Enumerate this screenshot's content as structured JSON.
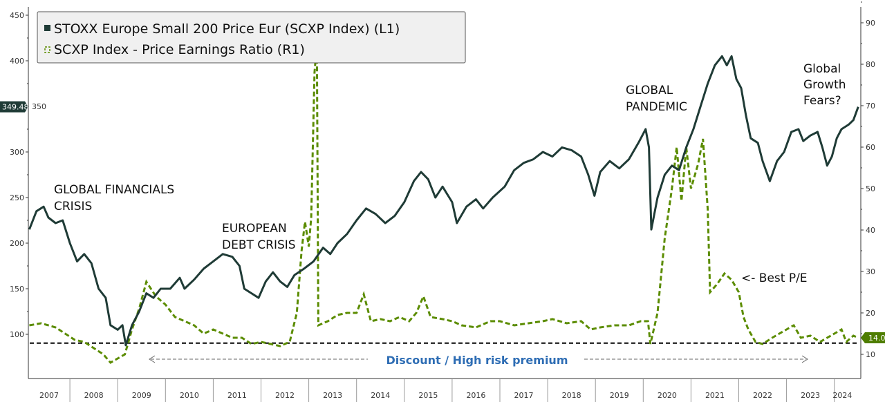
{
  "chart_data": {
    "type": "line",
    "title": "",
    "legend": {
      "placement": "top-left",
      "entries": [
        "STOXX Europe Small 200 Price Eur (SCXP Index) (L1)",
        "SCXP Index - Price Earnings Ratio (R1)"
      ]
    },
    "x_axis": {
      "type": "date",
      "tick_labels": [
        "2007",
        "2008",
        "2009",
        "2010",
        "2011",
        "2012",
        "2013",
        "2014",
        "2015",
        "2016",
        "2017",
        "2018",
        "2019",
        "2020",
        "2021",
        "2022",
        "2023",
        "2024"
      ]
    },
    "y_left": {
      "ylim": [
        50,
        455
      ],
      "ticks": [
        100,
        150,
        200,
        250,
        300,
        350,
        400,
        450
      ]
    },
    "y_right": {
      "ylim": [
        4,
        94
      ],
      "ticks": [
        10,
        20,
        30,
        40,
        50,
        60,
        70,
        80,
        90
      ]
    },
    "grid": false,
    "colors": {
      "price": "#1f3b36",
      "pe": "#5b8c00",
      "discount_text": "#2e6db4",
      "last_price_badge": "#1f3b36",
      "last_pe_badge": "#4e7d00"
    },
    "series": [
      {
        "name": "STOXX Europe Small 200 Price Eur (SCXP Index) (L1)",
        "axis": "left",
        "style": "solid",
        "points": [
          [
            2007.15,
            215
          ],
          [
            2007.3,
            235
          ],
          [
            2007.45,
            240
          ],
          [
            2007.55,
            228
          ],
          [
            2007.7,
            222
          ],
          [
            2007.85,
            225
          ],
          [
            2008.0,
            200
          ],
          [
            2008.15,
            180
          ],
          [
            2008.3,
            188
          ],
          [
            2008.45,
            178
          ],
          [
            2008.6,
            150
          ],
          [
            2008.75,
            140
          ],
          [
            2008.85,
            110
          ],
          [
            2009.0,
            105
          ],
          [
            2009.1,
            110
          ],
          [
            2009.17,
            88
          ],
          [
            2009.3,
            110
          ],
          [
            2009.45,
            125
          ],
          [
            2009.6,
            145
          ],
          [
            2009.75,
            140
          ],
          [
            2009.9,
            150
          ],
          [
            2010.1,
            150
          ],
          [
            2010.3,
            162
          ],
          [
            2010.4,
            150
          ],
          [
            2010.6,
            160
          ],
          [
            2010.8,
            172
          ],
          [
            2011.0,
            180
          ],
          [
            2011.2,
            188
          ],
          [
            2011.4,
            185
          ],
          [
            2011.55,
            175
          ],
          [
            2011.65,
            150
          ],
          [
            2011.8,
            145
          ],
          [
            2011.95,
            140
          ],
          [
            2012.1,
            158
          ],
          [
            2012.25,
            168
          ],
          [
            2012.4,
            158
          ],
          [
            2012.55,
            152
          ],
          [
            2012.7,
            165
          ],
          [
            2012.9,
            172
          ],
          [
            2013.1,
            180
          ],
          [
            2013.3,
            195
          ],
          [
            2013.45,
            188
          ],
          [
            2013.6,
            200
          ],
          [
            2013.8,
            210
          ],
          [
            2014.0,
            225
          ],
          [
            2014.2,
            238
          ],
          [
            2014.4,
            232
          ],
          [
            2014.6,
            222
          ],
          [
            2014.8,
            230
          ],
          [
            2015.0,
            245
          ],
          [
            2015.2,
            268
          ],
          [
            2015.35,
            278
          ],
          [
            2015.5,
            270
          ],
          [
            2015.65,
            250
          ],
          [
            2015.8,
            262
          ],
          [
            2016.0,
            245
          ],
          [
            2016.1,
            222
          ],
          [
            2016.3,
            240
          ],
          [
            2016.5,
            248
          ],
          [
            2016.65,
            238
          ],
          [
            2016.85,
            250
          ],
          [
            2017.1,
            262
          ],
          [
            2017.3,
            280
          ],
          [
            2017.5,
            288
          ],
          [
            2017.7,
            292
          ],
          [
            2017.9,
            300
          ],
          [
            2018.1,
            295
          ],
          [
            2018.3,
            305
          ],
          [
            2018.5,
            302
          ],
          [
            2018.7,
            295
          ],
          [
            2018.85,
            275
          ],
          [
            2018.98,
            252
          ],
          [
            2019.1,
            278
          ],
          [
            2019.3,
            290
          ],
          [
            2019.5,
            282
          ],
          [
            2019.7,
            292
          ],
          [
            2019.9,
            310
          ],
          [
            2020.05,
            325
          ],
          [
            2020.12,
            305
          ],
          [
            2020.17,
            215
          ],
          [
            2020.3,
            250
          ],
          [
            2020.45,
            275
          ],
          [
            2020.6,
            285
          ],
          [
            2020.75,
            280
          ],
          [
            2020.9,
            305
          ],
          [
            2021.05,
            325
          ],
          [
            2021.2,
            350
          ],
          [
            2021.35,
            375
          ],
          [
            2021.5,
            395
          ],
          [
            2021.65,
            405
          ],
          [
            2021.75,
            395
          ],
          [
            2021.85,
            405
          ],
          [
            2021.95,
            380
          ],
          [
            2022.05,
            370
          ],
          [
            2022.15,
            340
          ],
          [
            2022.25,
            315
          ],
          [
            2022.4,
            310
          ],
          [
            2022.5,
            290
          ],
          [
            2022.65,
            268
          ],
          [
            2022.8,
            290
          ],
          [
            2022.95,
            300
          ],
          [
            2023.1,
            322
          ],
          [
            2023.25,
            325
          ],
          [
            2023.35,
            312
          ],
          [
            2023.5,
            318
          ],
          [
            2023.65,
            322
          ],
          [
            2023.75,
            305
          ],
          [
            2023.85,
            285
          ],
          [
            2023.95,
            295
          ],
          [
            2024.05,
            315
          ],
          [
            2024.15,
            325
          ],
          [
            2024.3,
            330
          ],
          [
            2024.4,
            335
          ],
          [
            2024.5,
            349.48
          ]
        ]
      },
      {
        "name": "SCXP Index - Price Earnings Ratio (R1)",
        "axis": "right",
        "style": "dashed",
        "points": [
          [
            2007.15,
            17
          ],
          [
            2007.4,
            17.5
          ],
          [
            2007.7,
            16.5
          ],
          [
            2007.9,
            15
          ],
          [
            2008.1,
            13.5
          ],
          [
            2008.3,
            13
          ],
          [
            2008.5,
            11.5
          ],
          [
            2008.7,
            10
          ],
          [
            2008.85,
            8
          ],
          [
            2009.0,
            9
          ],
          [
            2009.15,
            10
          ],
          [
            2009.3,
            16
          ],
          [
            2009.45,
            21
          ],
          [
            2009.6,
            27.5
          ],
          [
            2009.8,
            24
          ],
          [
            2010.0,
            22
          ],
          [
            2010.2,
            19
          ],
          [
            2010.4,
            18
          ],
          [
            2010.6,
            17
          ],
          [
            2010.8,
            15
          ],
          [
            2011.0,
            16
          ],
          [
            2011.2,
            15
          ],
          [
            2011.4,
            14
          ],
          [
            2011.6,
            14
          ],
          [
            2011.8,
            12.5
          ],
          [
            2012.0,
            13
          ],
          [
            2012.2,
            12.5
          ],
          [
            2012.4,
            12
          ],
          [
            2012.6,
            13
          ],
          [
            2012.75,
            20
          ],
          [
            2012.85,
            35
          ],
          [
            2012.92,
            42
          ],
          [
            2013.0,
            36
          ],
          [
            2013.05,
            43
          ],
          [
            2013.12,
            78
          ],
          [
            2013.17,
            85
          ],
          [
            2013.2,
            17
          ],
          [
            2013.4,
            18
          ],
          [
            2013.6,
            19.5
          ],
          [
            2013.8,
            20
          ],
          [
            2014.0,
            20
          ],
          [
            2014.15,
            24.5
          ],
          [
            2014.3,
            18
          ],
          [
            2014.5,
            18.5
          ],
          [
            2014.7,
            18
          ],
          [
            2014.9,
            19
          ],
          [
            2015.1,
            18
          ],
          [
            2015.25,
            20
          ],
          [
            2015.4,
            24
          ],
          [
            2015.55,
            19
          ],
          [
            2015.8,
            18.5
          ],
          [
            2016.0,
            18
          ],
          [
            2016.2,
            17
          ],
          [
            2016.5,
            16.5
          ],
          [
            2016.8,
            18
          ],
          [
            2017.0,
            18
          ],
          [
            2017.3,
            17
          ],
          [
            2017.6,
            17.5
          ],
          [
            2017.9,
            18
          ],
          [
            2018.1,
            18.5
          ],
          [
            2018.4,
            17.5
          ],
          [
            2018.7,
            18
          ],
          [
            2018.9,
            16
          ],
          [
            2019.1,
            16.5
          ],
          [
            2019.4,
            17
          ],
          [
            2019.7,
            17
          ],
          [
            2019.95,
            18
          ],
          [
            2020.1,
            18
          ],
          [
            2020.15,
            12.5
          ],
          [
            2020.3,
            20
          ],
          [
            2020.45,
            38
          ],
          [
            2020.6,
            50
          ],
          [
            2020.7,
            60
          ],
          [
            2020.8,
            47
          ],
          [
            2020.9,
            60
          ],
          [
            2021.0,
            50
          ],
          [
            2021.15,
            56
          ],
          [
            2021.25,
            62
          ],
          [
            2021.35,
            45
          ],
          [
            2021.4,
            25
          ],
          [
            2021.55,
            27
          ],
          [
            2021.7,
            29.5
          ],
          [
            2021.85,
            28
          ],
          [
            2022.0,
            25
          ],
          [
            2022.1,
            19
          ],
          [
            2022.2,
            16
          ],
          [
            2022.35,
            13
          ],
          [
            2022.5,
            12.5
          ],
          [
            2022.7,
            14
          ],
          [
            2022.85,
            15
          ],
          [
            2023.0,
            16
          ],
          [
            2023.15,
            17
          ],
          [
            2023.3,
            14
          ],
          [
            2023.5,
            14.5
          ],
          [
            2023.7,
            13
          ],
          [
            2023.85,
            14
          ],
          [
            2024.0,
            15
          ],
          [
            2024.15,
            16
          ],
          [
            2024.25,
            13
          ],
          [
            2024.4,
            14.5
          ],
          [
            2024.5,
            14.0
          ]
        ]
      }
    ],
    "last_values": {
      "price": "349.48",
      "pe": "14.0"
    },
    "reference_line": {
      "axis": "right",
      "value": 12.7,
      "style": "dashed"
    },
    "annotations": {
      "gfc": [
        "GLOBAL FINANCIALS",
        "CRISIS"
      ],
      "debt": [
        "EUROPEAN",
        "DEBT CRISIS"
      ],
      "pandemic": [
        "GLOBAL",
        "PANDEMIC"
      ],
      "growth": [
        "Global",
        "Growth",
        "Fears?"
      ],
      "best_pe": "<- Best P/E",
      "discount": "Discount / High risk premium"
    }
  }
}
